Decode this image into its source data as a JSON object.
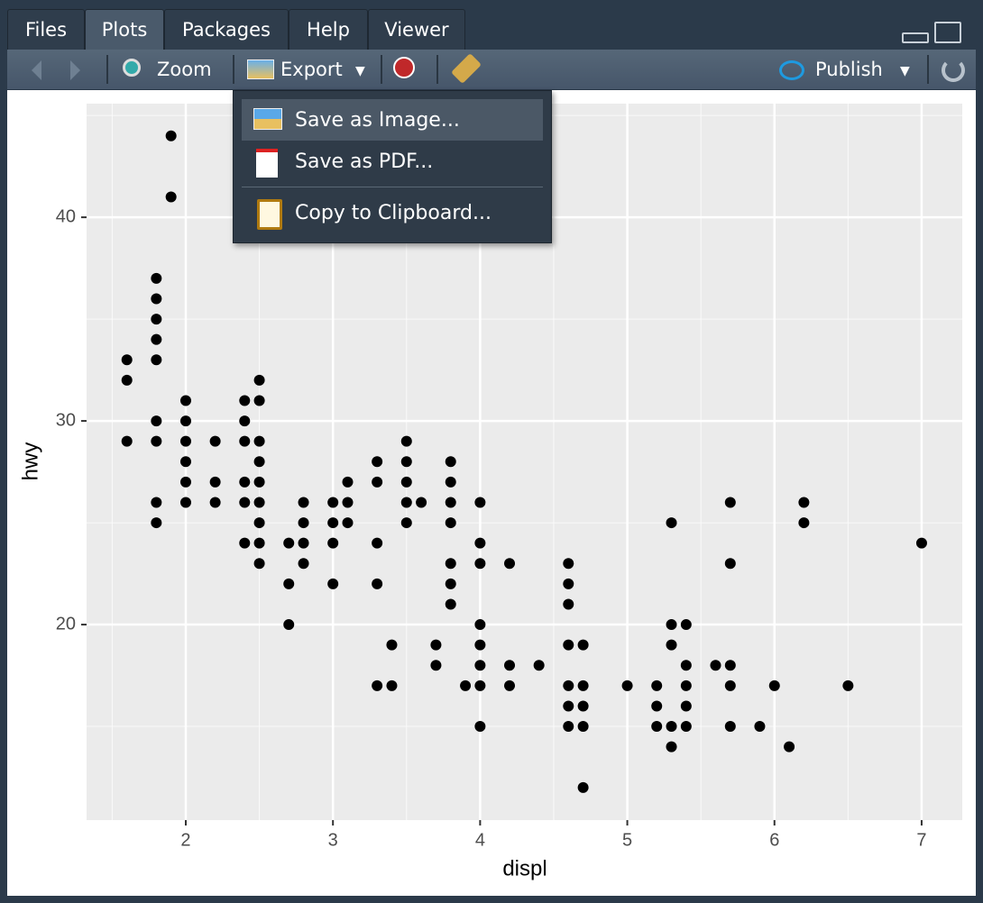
{
  "tabs": [
    "Files",
    "Plots",
    "Packages",
    "Help",
    "Viewer"
  ],
  "toolbar": {
    "zoom": "Zoom",
    "export": "Export",
    "publish": "Publish"
  },
  "menu": [
    "Save as Image...",
    "Save as PDF...",
    "Copy to Clipboard..."
  ],
  "chart_data": {
    "type": "scatter",
    "xlabel": "displ",
    "ylabel": "hwy",
    "color": "#000000",
    "grid": true,
    "x": [
      1.6,
      1.6,
      1.6,
      1.9,
      1.9,
      1.8,
      1.8,
      1.8,
      1.8,
      1.8,
      1.8,
      1.8,
      1.8,
      1.8,
      2,
      2,
      2,
      2,
      2,
      2,
      2.2,
      2.2,
      2.2,
      2.4,
      2.4,
      2.4,
      2.4,
      2.4,
      2.4,
      2.5,
      2.5,
      2.5,
      2.5,
      2.5,
      2.5,
      2.5,
      2.5,
      2.5,
      2.7,
      2.7,
      2.7,
      2.8,
      2.8,
      2.8,
      2.8,
      3,
      3,
      3,
      3,
      3.1,
      3.1,
      3.1,
      3.3,
      3.3,
      3.3,
      3.3,
      3.3,
      3.4,
      3.4,
      3.5,
      3.5,
      3.5,
      3.5,
      3.5,
      3.6,
      3.7,
      3.7,
      3.8,
      3.8,
      3.8,
      3.8,
      3.8,
      3.8,
      3.8,
      3.9,
      4,
      4,
      4,
      4,
      4,
      4,
      4,
      4,
      4.2,
      4.2,
      4.2,
      4.4,
      4.6,
      4.6,
      4.6,
      4.6,
      4.6,
      4.6,
      4.6,
      4.7,
      4.7,
      4.7,
      4.7,
      4.7,
      5,
      5.2,
      5.2,
      5.2,
      5.3,
      5.3,
      5.3,
      5.3,
      5.3,
      5.4,
      5.4,
      5.4,
      5.4,
      5.4,
      5.6,
      5.7,
      5.7,
      5.7,
      5.7,
      5.7,
      5.9,
      6,
      6.1,
      6.2,
      6.2,
      6.5,
      7
    ],
    "values": [
      33,
      32,
      29,
      44,
      41,
      37,
      36,
      35,
      34,
      33,
      30,
      29,
      26,
      25,
      31,
      30,
      29,
      28,
      27,
      26,
      29,
      27,
      26,
      31,
      30,
      29,
      27,
      26,
      24,
      32,
      31,
      29,
      28,
      27,
      26,
      25,
      24,
      23,
      24,
      22,
      20,
      26,
      25,
      24,
      23,
      26,
      25,
      24,
      22,
      27,
      26,
      25,
      28,
      27,
      24,
      22,
      17,
      19,
      17,
      29,
      28,
      27,
      26,
      25,
      26,
      19,
      18,
      28,
      27,
      26,
      25,
      23,
      22,
      21,
      17,
      26,
      24,
      23,
      20,
      19,
      18,
      17,
      15,
      23,
      18,
      17,
      18,
      23,
      22,
      21,
      19,
      17,
      16,
      15,
      19,
      17,
      16,
      15,
      12,
      17,
      17,
      16,
      15,
      25,
      20,
      19,
      15,
      14,
      20,
      18,
      17,
      16,
      15,
      18,
      26,
      23,
      18,
      17,
      15,
      15,
      17,
      14,
      26,
      25,
      17,
      24
    ],
    "xlim": [
      1.326,
      7.276
    ],
    "ylim": [
      10.4,
      45.58
    ],
    "xticks": [
      2,
      3,
      4,
      5,
      6,
      7
    ],
    "yticks": [
      20,
      30,
      40
    ]
  }
}
